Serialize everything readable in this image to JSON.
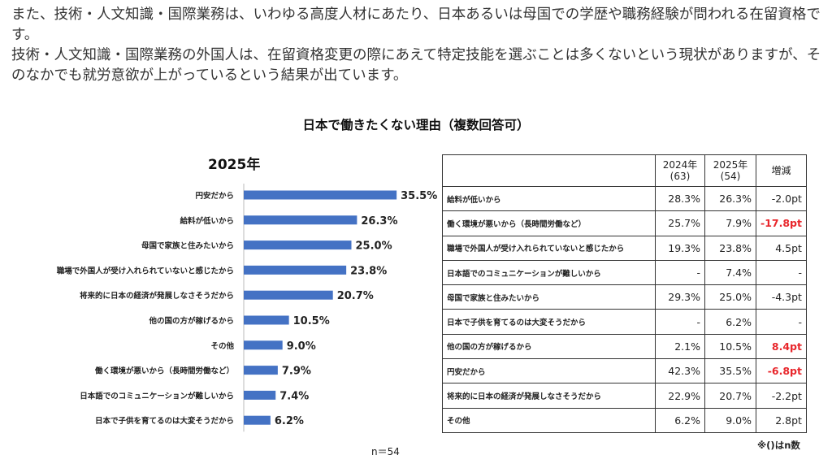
{
  "intro": {
    "paragraph1": "また、技術・人文知識・国際業務は、いわゆる高度人材にあたり、日本あるいは母国での学歴や職務経験が問われる在留資格です。",
    "paragraph2": "技術・人文知識・国際業務の外国人は、在留資格変更の際にあえて特定技能を選ぶことは多くないという現状がありますが、そのなかでも就労意欲が上がっているという結果が出ています。"
  },
  "chart_title": "日本で働きたくない理由（複数回答可）",
  "chart_data": {
    "type": "bar",
    "orientation": "horizontal",
    "title": "2025年",
    "categories": [
      "円安だから",
      "給料が低いから",
      "母国で家族と住みたいから",
      "職場で外国人が受け入れられていないと感じたから",
      "将来的に日本の経済が発展しなさそうだから",
      "他の国の方が稼げるから",
      "その他",
      "働く環境が悪いから（長時間労働など）",
      "日本語でのコミュニケーションが難しいから",
      "日本で子供を育てるのは大変そうだから"
    ],
    "values": [
      35.5,
      26.3,
      25.0,
      23.8,
      20.7,
      10.5,
      9.0,
      7.9,
      7.4,
      6.2
    ],
    "value_labels": [
      "35.5%",
      "26.3%",
      "25.0%",
      "23.8%",
      "20.7%",
      "10.5%",
      "9.0%",
      "7.9%",
      "7.4%",
      "6.2%"
    ],
    "bar_color": "#4472c4",
    "note": "n＝54"
  },
  "table": {
    "headers": [
      "",
      "2024年\n(63)",
      "2025年\n(54)",
      "増減"
    ],
    "rows": [
      {
        "reason": "給料が低いから",
        "y2024": "28.3%",
        "y2025": "26.3%",
        "diff": "-2.0pt",
        "highlight": false
      },
      {
        "reason": "働く環境が悪いから（長時間労働など）",
        "y2024": "25.7%",
        "y2025": "7.9%",
        "diff": "-17.8pt",
        "highlight": true
      },
      {
        "reason": "職場で外国人が受け入れられていないと感じたから",
        "y2024": "19.3%",
        "y2025": "23.8%",
        "diff": "4.5pt",
        "highlight": false
      },
      {
        "reason": "日本語でのコミュニケーションが難しいから",
        "y2024": "-",
        "y2025": "7.4%",
        "diff": "-",
        "highlight": false
      },
      {
        "reason": "母国で家族と住みたいから",
        "y2024": "29.3%",
        "y2025": "25.0%",
        "diff": "-4.3pt",
        "highlight": false
      },
      {
        "reason": "日本で子供を育てるのは大変そうだから",
        "y2024": "-",
        "y2025": "6.2%",
        "diff": "-",
        "highlight": false
      },
      {
        "reason": "他の国の方が稼げるから",
        "y2024": "2.1%",
        "y2025": "10.5%",
        "diff": "8.4pt",
        "highlight": true
      },
      {
        "reason": "円安だから",
        "y2024": "42.3%",
        "y2025": "35.5%",
        "diff": "-6.8pt",
        "highlight": true
      },
      {
        "reason": "将来的に日本の経済が発展しなさそうだから",
        "y2024": "22.9%",
        "y2025": "20.7%",
        "diff": "-2.2pt",
        "highlight": false
      },
      {
        "reason": "その他",
        "y2024": "6.2%",
        "y2025": "9.0%",
        "diff": "2.8pt",
        "highlight": false
      }
    ],
    "highlight_color": "#e8262b",
    "footnote": "※()はn数"
  }
}
